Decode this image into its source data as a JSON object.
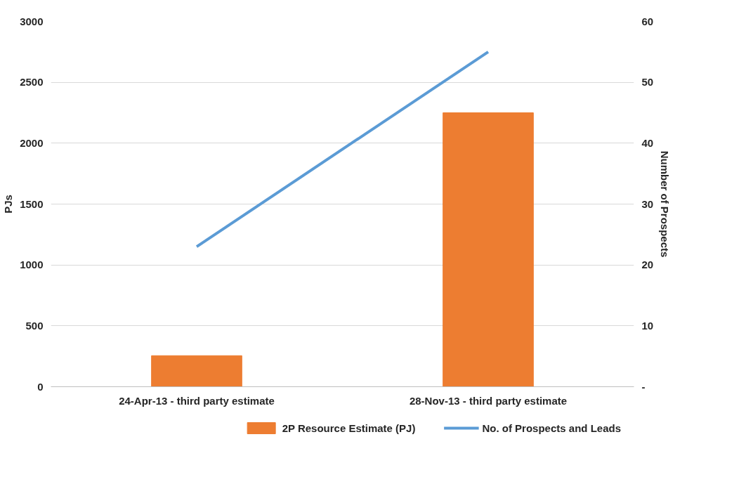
{
  "chart_data": {
    "type": "bar",
    "categories": [
      "24-Apr-13 - third party estimate",
      "28-Nov-13 - third party estimate"
    ],
    "series": [
      {
        "name": "2P Resource Estimate (PJ)",
        "color": "#ed7d31",
        "values": [
          255,
          2250
        ]
      },
      {
        "name": "No. of Prospects and Leads",
        "type": "line",
        "axis": "y2",
        "color": "#5b9bd5",
        "values": [
          23,
          55
        ]
      }
    ],
    "ylabel": "PJs",
    "y2label": "Number of Prospects",
    "ylim": [
      0,
      3000
    ],
    "yticks": [
      0,
      500,
      1000,
      1500,
      2000,
      2500,
      3000
    ],
    "y2lim": [
      0,
      60
    ],
    "y2ticks": [
      {
        "value": 0,
        "label": "-"
      },
      10,
      20,
      30,
      40,
      50,
      60
    ],
    "grid": "y",
    "legend": "bottom",
    "marker": "none"
  }
}
